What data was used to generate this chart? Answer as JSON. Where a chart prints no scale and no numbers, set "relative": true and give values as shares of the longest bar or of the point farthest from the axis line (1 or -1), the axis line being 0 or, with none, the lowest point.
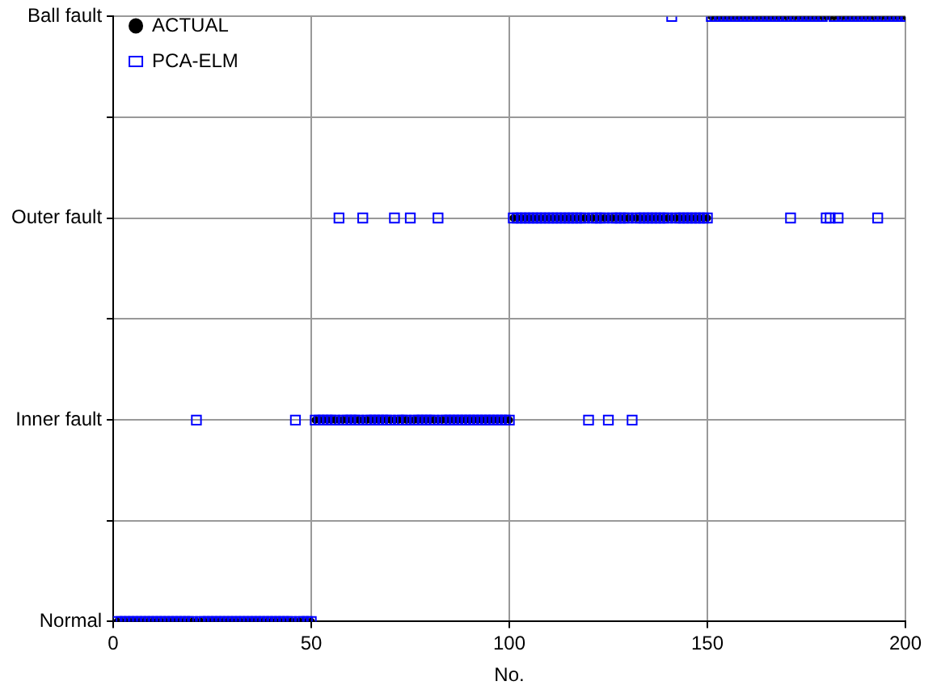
{
  "chart_data": {
    "type": "scatter",
    "xlabel": "No.",
    "relative": true,
    "x": [
      1,
      2,
      3,
      4,
      5,
      6,
      7,
      8,
      9,
      10,
      11,
      12,
      13,
      14,
      15,
      16,
      17,
      18,
      19,
      20,
      21,
      22,
      23,
      24,
      25,
      26,
      27,
      28,
      29,
      30,
      31,
      32,
      33,
      34,
      35,
      36,
      37,
      38,
      39,
      40,
      41,
      42,
      43,
      44,
      45,
      46,
      47,
      48,
      49,
      50,
      51,
      52,
      53,
      54,
      55,
      56,
      57,
      58,
      59,
      60,
      61,
      62,
      63,
      64,
      65,
      66,
      67,
      68,
      69,
      70,
      71,
      72,
      73,
      74,
      75,
      76,
      77,
      78,
      79,
      80,
      81,
      82,
      83,
      84,
      85,
      86,
      87,
      88,
      89,
      90,
      91,
      92,
      93,
      94,
      95,
      96,
      97,
      98,
      99,
      100,
      101,
      102,
      103,
      104,
      105,
      106,
      107,
      108,
      109,
      110,
      111,
      112,
      113,
      114,
      115,
      116,
      117,
      118,
      119,
      120,
      121,
      122,
      123,
      124,
      125,
      126,
      127,
      128,
      129,
      130,
      131,
      132,
      133,
      134,
      135,
      136,
      137,
      138,
      139,
      140,
      141,
      142,
      143,
      144,
      145,
      146,
      147,
      148,
      149,
      150,
      151,
      152,
      153,
      154,
      155,
      156,
      157,
      158,
      159,
      160,
      161,
      162,
      163,
      164,
      165,
      166,
      167,
      168,
      169,
      170,
      171,
      172,
      173,
      174,
      175,
      176,
      177,
      178,
      179,
      180,
      181,
      182,
      183,
      184,
      185,
      186,
      187,
      188,
      189,
      190,
      191,
      192,
      193,
      194,
      195,
      196,
      197,
      198,
      199,
      200
    ],
    "y_categories": [
      "Ball fault",
      null,
      "Outer fault",
      null,
      "Inner fault",
      null,
      "Normal"
    ],
    "series": [
      {
        "name": "ACTUAL",
        "color": "#000000",
        "marker": "circle",
        "values": [
          0,
          0,
          0,
          0,
          0,
          0,
          0,
          0,
          0,
          0,
          0,
          0,
          0,
          0,
          0,
          0,
          0,
          0,
          0,
          0,
          0,
          0,
          0,
          0,
          0,
          0,
          0,
          0,
          0,
          0,
          0,
          0,
          0,
          0,
          0,
          0,
          0,
          0,
          0,
          0,
          0,
          0,
          0,
          0,
          0,
          0,
          0,
          0,
          0,
          0,
          0.333,
          0.333,
          0.333,
          0.333,
          0.333,
          0.333,
          0.333,
          0.333,
          0.333,
          0.333,
          0.333,
          0.333,
          0.333,
          0.333,
          0.333,
          0.333,
          0.333,
          0.333,
          0.333,
          0.333,
          0.333,
          0.333,
          0.333,
          0.333,
          0.333,
          0.333,
          0.333,
          0.333,
          0.333,
          0.333,
          0.333,
          0.333,
          0.333,
          0.333,
          0.333,
          0.333,
          0.333,
          0.333,
          0.333,
          0.333,
          0.333,
          0.333,
          0.333,
          0.333,
          0.333,
          0.333,
          0.333,
          0.333,
          0.333,
          0.333,
          0.667,
          0.667,
          0.667,
          0.667,
          0.667,
          0.667,
          0.667,
          0.667,
          0.667,
          0.667,
          0.667,
          0.667,
          0.667,
          0.667,
          0.667,
          0.667,
          0.667,
          0.667,
          0.667,
          0.667,
          0.667,
          0.667,
          0.667,
          0.667,
          0.667,
          0.667,
          0.667,
          0.667,
          0.667,
          0.667,
          0.667,
          0.667,
          0.667,
          0.667,
          0.667,
          0.667,
          0.667,
          0.667,
          0.667,
          0.667,
          0.667,
          0.667,
          0.667,
          0.667,
          0.667,
          0.667,
          0.667,
          0.667,
          0.667,
          0.667,
          1,
          1,
          1,
          1,
          1,
          1,
          1,
          1,
          1,
          1,
          1,
          1,
          1,
          1,
          1,
          1,
          1,
          1,
          1,
          1,
          1,
          1,
          1,
          1,
          1,
          1,
          1,
          1,
          1,
          1,
          1,
          1,
          1,
          1,
          1,
          1,
          1,
          1,
          1,
          1,
          1,
          1,
          1,
          1,
          1,
          1,
          1,
          1,
          1,
          1
        ]
      },
      {
        "name": "PCA-ELM",
        "color": "#0000ff",
        "marker": "square",
        "values": [
          0,
          0,
          0,
          0,
          0,
          0,
          0,
          0,
          0,
          0,
          0,
          0,
          0,
          0,
          0,
          0,
          0,
          0,
          0,
          0,
          0.333,
          0,
          0,
          0,
          0,
          0,
          0,
          0,
          0,
          0,
          0,
          0,
          0,
          0,
          0,
          0,
          0,
          0,
          0,
          0,
          0,
          0,
          0,
          0,
          0,
          0.333,
          0,
          0,
          0,
          0,
          0.333,
          0.333,
          0.333,
          0.333,
          0.333,
          0.333,
          0.667,
          0.333,
          0.333,
          0.333,
          0.333,
          0.333,
          0.667,
          0.333,
          0.333,
          0.333,
          0.333,
          0.333,
          0.333,
          0.333,
          0.667,
          0.333,
          0.333,
          0.333,
          0.667,
          0.333,
          0.333,
          0.333,
          0.333,
          0.333,
          0.333,
          0.667,
          0.333,
          0.333,
          0.333,
          0.333,
          0.333,
          0.333,
          0.333,
          0.333,
          0.333,
          0.333,
          0.333,
          0.333,
          0.333,
          0.333,
          0.333,
          0.333,
          0.333,
          0.333,
          0.667,
          0.667,
          0.667,
          0.667,
          0.667,
          0.667,
          0.667,
          0.667,
          0.667,
          0.667,
          0.667,
          0.667,
          0.667,
          0.667,
          0.667,
          0.667,
          0.667,
          0.667,
          0.667,
          0.333,
          0.667,
          0.667,
          0.667,
          0.667,
          0.333,
          0.667,
          0.667,
          0.667,
          0.667,
          0.667,
          0.333,
          0.667,
          0.667,
          0.667,
          0.667,
          0.667,
          0.667,
          0.667,
          0.667,
          0.667,
          1,
          0.667,
          0.667,
          0.667,
          0.667,
          0.667,
          0.667,
          0.667,
          0.667,
          0.667,
          1,
          1,
          1,
          1,
          1,
          1,
          1,
          1,
          1,
          1,
          1,
          1,
          1,
          1,
          1,
          1,
          1,
          1,
          1,
          1,
          0.667,
          1,
          1,
          1,
          1,
          1,
          1,
          1,
          1,
          0.667,
          0.667,
          1,
          0.667,
          1,
          1,
          1,
          1,
          1,
          1,
          1,
          1,
          1,
          0.667,
          1,
          1,
          1,
          1,
          1,
          1,
          1
        ]
      }
    ],
    "xlim": [
      0,
      200
    ],
    "xticks": [
      0,
      50,
      100,
      150,
      200
    ],
    "grid": true,
    "legend": "top left"
  }
}
